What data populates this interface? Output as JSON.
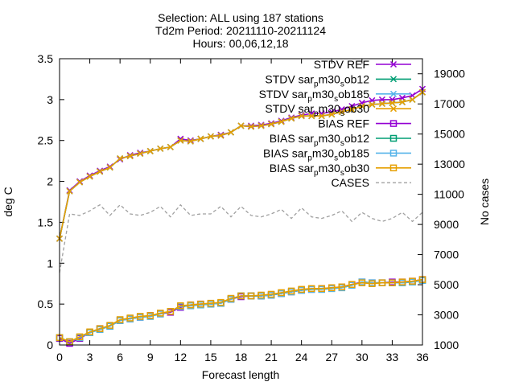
{
  "chart_data": {
    "type": "line",
    "title_lines": [
      "Selection: ALL using   187 stations",
      "Td2m   Period: 20211110-20211124",
      "Hours: 00,06,12,18"
    ],
    "xlabel": "Forecast length",
    "ylabel": "deg C",
    "y2label": "No cases",
    "xlim": [
      0,
      36
    ],
    "ylim": [
      0,
      3.5
    ],
    "y2lim": [
      1000,
      20000
    ],
    "xticks": [
      0,
      3,
      6,
      9,
      12,
      15,
      18,
      21,
      24,
      27,
      30,
      33,
      36
    ],
    "yticks": [
      0,
      0.5,
      1,
      1.5,
      2,
      2.5,
      3,
      3.5
    ],
    "yticklabels": [
      "0",
      "0.5",
      "1",
      "1.5",
      "2",
      "2.5",
      "3",
      "3.5"
    ],
    "y2ticks": [
      1000,
      3000,
      5000,
      7000,
      9000,
      11000,
      13000,
      15000,
      17000,
      19000
    ],
    "x": [
      0,
      1,
      2,
      3,
      4,
      5,
      6,
      7,
      8,
      9,
      10,
      11,
      12,
      13,
      14,
      15,
      16,
      17,
      18,
      19,
      20,
      21,
      22,
      23,
      24,
      25,
      26,
      27,
      28,
      29,
      30,
      31,
      32,
      33,
      34,
      35,
      36
    ],
    "legend_position": "top-right",
    "series": [
      {
        "name": "STDV REF",
        "axis": "y",
        "color": "#9400d3",
        "marker": "x",
        "dash": false,
        "values": [
          1.3,
          1.89,
          2.0,
          2.07,
          2.13,
          2.18,
          2.27,
          2.32,
          2.35,
          2.37,
          2.4,
          2.42,
          2.52,
          2.5,
          2.52,
          2.55,
          2.57,
          2.6,
          2.68,
          2.68,
          2.69,
          2.71,
          2.74,
          2.78,
          2.81,
          2.83,
          2.83,
          2.85,
          2.88,
          2.92,
          2.96,
          2.99,
          3.0,
          3.0,
          3.02,
          3.05,
          3.13
        ]
      },
      {
        "name": "STDV sar_pm30_sob12",
        "axis": "y",
        "color": "#009e73",
        "marker": "x",
        "dash": false,
        "values": [
          1.3,
          1.88,
          1.99,
          2.06,
          2.12,
          2.17,
          2.28,
          2.31,
          2.34,
          2.37,
          2.4,
          2.42,
          2.5,
          2.49,
          2.52,
          2.55,
          2.56,
          2.6,
          2.68,
          2.67,
          2.68,
          2.7,
          2.73,
          2.77,
          2.8,
          2.8,
          2.8,
          2.82,
          2.85,
          2.88,
          2.92,
          2.94,
          2.95,
          2.96,
          2.97,
          3.0,
          3.09
        ]
      },
      {
        "name": "STDV sar_pm30_sob185",
        "axis": "y",
        "color": "#56b4e9",
        "marker": "x",
        "dash": false,
        "values": [
          1.3,
          1.88,
          1.99,
          2.06,
          2.12,
          2.17,
          2.28,
          2.31,
          2.34,
          2.37,
          2.4,
          2.42,
          2.5,
          2.49,
          2.52,
          2.55,
          2.56,
          2.6,
          2.68,
          2.67,
          2.68,
          2.7,
          2.73,
          2.77,
          2.8,
          2.8,
          2.8,
          2.82,
          2.85,
          2.88,
          2.92,
          2.94,
          2.95,
          2.96,
          2.97,
          3.0,
          3.09
        ]
      },
      {
        "name": "STDV sar_pm30_sob30",
        "axis": "y",
        "color": "#e69f00",
        "marker": "x",
        "dash": false,
        "values": [
          1.3,
          1.88,
          1.99,
          2.06,
          2.12,
          2.17,
          2.28,
          2.31,
          2.34,
          2.37,
          2.4,
          2.42,
          2.5,
          2.49,
          2.52,
          2.55,
          2.56,
          2.6,
          2.68,
          2.67,
          2.68,
          2.7,
          2.73,
          2.77,
          2.8,
          2.8,
          2.8,
          2.82,
          2.85,
          2.88,
          2.92,
          2.94,
          2.95,
          2.96,
          2.97,
          3.0,
          3.09
        ]
      },
      {
        "name": "BIAS REF",
        "axis": "y",
        "color": "#9400d3",
        "marker": "square",
        "dash": false,
        "values": [
          0.08,
          0.02,
          0.08,
          0.15,
          0.2,
          0.23,
          0.3,
          0.32,
          0.34,
          0.36,
          0.38,
          0.4,
          0.46,
          0.49,
          0.5,
          0.5,
          0.51,
          0.56,
          0.59,
          0.6,
          0.6,
          0.61,
          0.63,
          0.65,
          0.67,
          0.68,
          0.69,
          0.7,
          0.71,
          0.74,
          0.77,
          0.76,
          0.76,
          0.77,
          0.77,
          0.78,
          0.8
        ]
      },
      {
        "name": "BIAS sar_pm30_sob12",
        "axis": "y",
        "color": "#009e73",
        "marker": "square",
        "dash": false,
        "values": [
          0.09,
          0.04,
          0.09,
          0.15,
          0.19,
          0.23,
          0.3,
          0.32,
          0.34,
          0.35,
          0.38,
          0.41,
          0.47,
          0.48,
          0.49,
          0.5,
          0.51,
          0.56,
          0.6,
          0.6,
          0.6,
          0.61,
          0.63,
          0.65,
          0.67,
          0.68,
          0.68,
          0.69,
          0.7,
          0.73,
          0.77,
          0.76,
          0.76,
          0.76,
          0.76,
          0.77,
          0.79
        ]
      },
      {
        "name": "BIAS sar_pm30_sob185",
        "axis": "y",
        "color": "#56b4e9",
        "marker": "square",
        "dash": false,
        "values": [
          0.09,
          0.04,
          0.09,
          0.15,
          0.19,
          0.23,
          0.3,
          0.32,
          0.34,
          0.35,
          0.38,
          0.41,
          0.47,
          0.48,
          0.49,
          0.5,
          0.51,
          0.56,
          0.6,
          0.6,
          0.6,
          0.61,
          0.63,
          0.65,
          0.67,
          0.68,
          0.68,
          0.69,
          0.7,
          0.73,
          0.77,
          0.76,
          0.76,
          0.76,
          0.76,
          0.77,
          0.79
        ]
      },
      {
        "name": "BIAS sar_pm30_sob30",
        "axis": "y",
        "color": "#e69f00",
        "marker": "square",
        "dash": false,
        "values": [
          0.09,
          0.04,
          0.1,
          0.16,
          0.2,
          0.24,
          0.31,
          0.33,
          0.35,
          0.36,
          0.39,
          0.41,
          0.48,
          0.49,
          0.5,
          0.51,
          0.52,
          0.57,
          0.6,
          0.6,
          0.61,
          0.62,
          0.64,
          0.66,
          0.68,
          0.69,
          0.69,
          0.7,
          0.71,
          0.74,
          0.76,
          0.75,
          0.76,
          0.76,
          0.77,
          0.78,
          0.8
        ]
      },
      {
        "name": "CASES",
        "axis": "y2",
        "color": "#a0a0a0",
        "marker": "none",
        "dash": true,
        "values": [
          5800,
          9700,
          9600,
          9900,
          10300,
          9600,
          10300,
          9700,
          9600,
          9800,
          10200,
          9500,
          10300,
          9600,
          9700,
          9700,
          10200,
          9500,
          10200,
          9600,
          9500,
          9700,
          10000,
          9400,
          10100,
          9500,
          9400,
          9600,
          9900,
          9200,
          9800,
          9400,
          9200,
          9400,
          9800,
          9200,
          9800
        ]
      }
    ]
  }
}
